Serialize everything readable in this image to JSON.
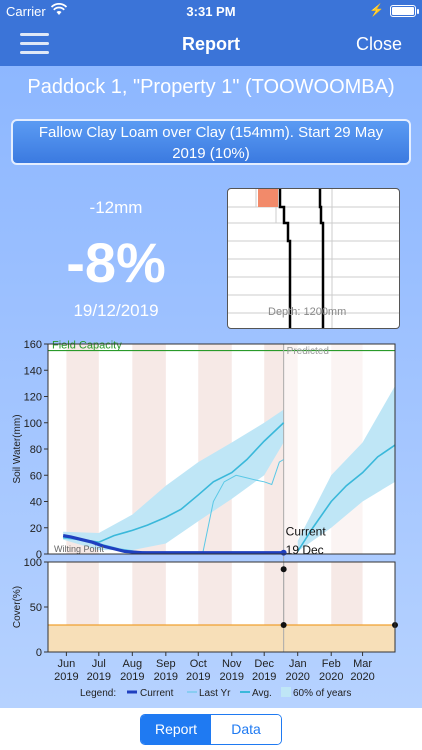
{
  "status_bar": {
    "carrier": "Carrier",
    "time": "3:31 PM"
  },
  "nav": {
    "title": "Report",
    "close_label": "Close"
  },
  "paddock_title": "Paddock 1, \"Property 1\" (TOOWOOMBA)",
  "crop": {
    "line1": "Fallow Clay Loam over Clay (154mm). Start 29 May",
    "line2": "2019 (10%)"
  },
  "summary": {
    "soil_water_mm": "-12mm",
    "percent": "-8%",
    "date": "19/12/2019"
  },
  "profile": {
    "depth_label": "Depth: 1200mm"
  },
  "colors": {
    "accent": "#3b74d8",
    "current": "#1f3fbf",
    "last_year": "#5ac8e6",
    "avg": "#3ab8da",
    "band": "#bfe6f6",
    "field_capacity": "#2a9a2a",
    "cover_fill": "#f7dfb8",
    "cover_line": "#f0a030"
  },
  "chart_data": [
    {
      "type": "line",
      "ylabel": "Soil Water(mm)",
      "ylim": [
        0,
        160
      ],
      "yticks": [
        "0",
        "20",
        "40",
        "60",
        "80",
        "100",
        "120",
        "140",
        "160"
      ],
      "x_months": [
        "Jun\n2019",
        "Jul\n2019",
        "Aug\n2019",
        "Sep\n2019",
        "Oct\n2019",
        "Nov\n2019",
        "Dec\n2019",
        "Jan\n2020",
        "Feb\n2020",
        "Mar\n2020"
      ],
      "annotations": {
        "field_capacity": "Field Capacity",
        "field_capacity_value": 155,
        "wilting_point": "Wilting Point",
        "predicted": "Predicted",
        "current_label": "Current",
        "current_date": "19 Dec"
      },
      "series": [
        {
          "name": "Current",
          "x": [
            "2019-05-29",
            "2019-06-05",
            "2019-06-15",
            "2019-06-25",
            "2019-07-05",
            "2019-07-15",
            "2019-07-25",
            "2019-08-10",
            "2019-09-01",
            "2019-10-01",
            "2019-11-01",
            "2019-12-01",
            "2019-12-19"
          ],
          "y": [
            14,
            13,
            11,
            9,
            6,
            4,
            2,
            1,
            1,
            1,
            1,
            1,
            1
          ]
        },
        {
          "name": "Last Yr",
          "x": [
            "2019-05-29",
            "2019-06-10",
            "2019-07-01",
            "2019-07-20",
            "2019-08-05",
            "2019-08-25",
            "2019-09-10",
            "2019-09-25",
            "2019-10-05",
            "2019-10-15",
            "2019-10-25",
            "2019-11-05",
            "2019-11-15",
            "2019-11-25",
            "2019-12-01",
            "2019-12-08",
            "2019-12-15",
            "2019-12-19"
          ],
          "y": [
            12,
            11,
            8,
            4,
            2,
            1,
            1,
            0,
            0,
            40,
            55,
            60,
            58,
            56,
            55,
            53,
            70,
            72
          ]
        },
        {
          "name": "Avg.",
          "x": [
            "2019-05-29",
            "2019-06-15",
            "2019-07-01",
            "2019-07-15",
            "2019-08-01",
            "2019-08-15",
            "2019-09-01",
            "2019-09-15",
            "2019-10-01",
            "2019-10-15",
            "2019-11-01",
            "2019-11-15",
            "2019-12-01",
            "2019-12-19",
            "2020-01-01",
            "2020-01-15",
            "2020-02-01",
            "2020-02-15",
            "2020-03-01",
            "2020-03-15",
            "2020-03-31"
          ],
          "y": [
            13,
            11,
            9,
            14,
            18,
            22,
            28,
            34,
            45,
            55,
            62,
            72,
            86,
            100,
            2,
            20,
            40,
            52,
            62,
            74,
            83
          ]
        },
        {
          "name": "60% of years",
          "x": [
            "2019-05-29",
            "2019-07-01",
            "2019-08-01",
            "2019-09-01",
            "2019-10-01",
            "2019-11-01",
            "2019-12-01",
            "2019-12-19",
            "2020-01-01",
            "2020-02-01",
            "2020-03-01",
            "2020-03-31"
          ],
          "low": [
            11,
            3,
            3,
            8,
            25,
            42,
            60,
            85,
            2,
            20,
            40,
            55
          ],
          "high": [
            17,
            16,
            30,
            52,
            70,
            85,
            100,
            110,
            10,
            60,
            85,
            128
          ]
        }
      ]
    },
    {
      "type": "line",
      "ylabel": "Cover(%)",
      "ylim": [
        0,
        100
      ],
      "yticks": [
        "0",
        "50",
        "100"
      ],
      "series": [
        {
          "name": "Cover",
          "x": [
            "2019-05-29",
            "2020-03-31"
          ],
          "y": [
            30,
            30
          ]
        }
      ],
      "points": [
        {
          "x": "2019-12-19",
          "y": 92
        },
        {
          "x": "2019-12-19",
          "y": 30
        },
        {
          "x": "2020-03-31",
          "y": 30
        }
      ]
    }
  ],
  "legend": {
    "title": "Legend:",
    "items": [
      "Current",
      "Last Yr",
      "Avg.",
      "60% of years"
    ]
  },
  "tabs": {
    "report": "Report",
    "data": "Data"
  }
}
